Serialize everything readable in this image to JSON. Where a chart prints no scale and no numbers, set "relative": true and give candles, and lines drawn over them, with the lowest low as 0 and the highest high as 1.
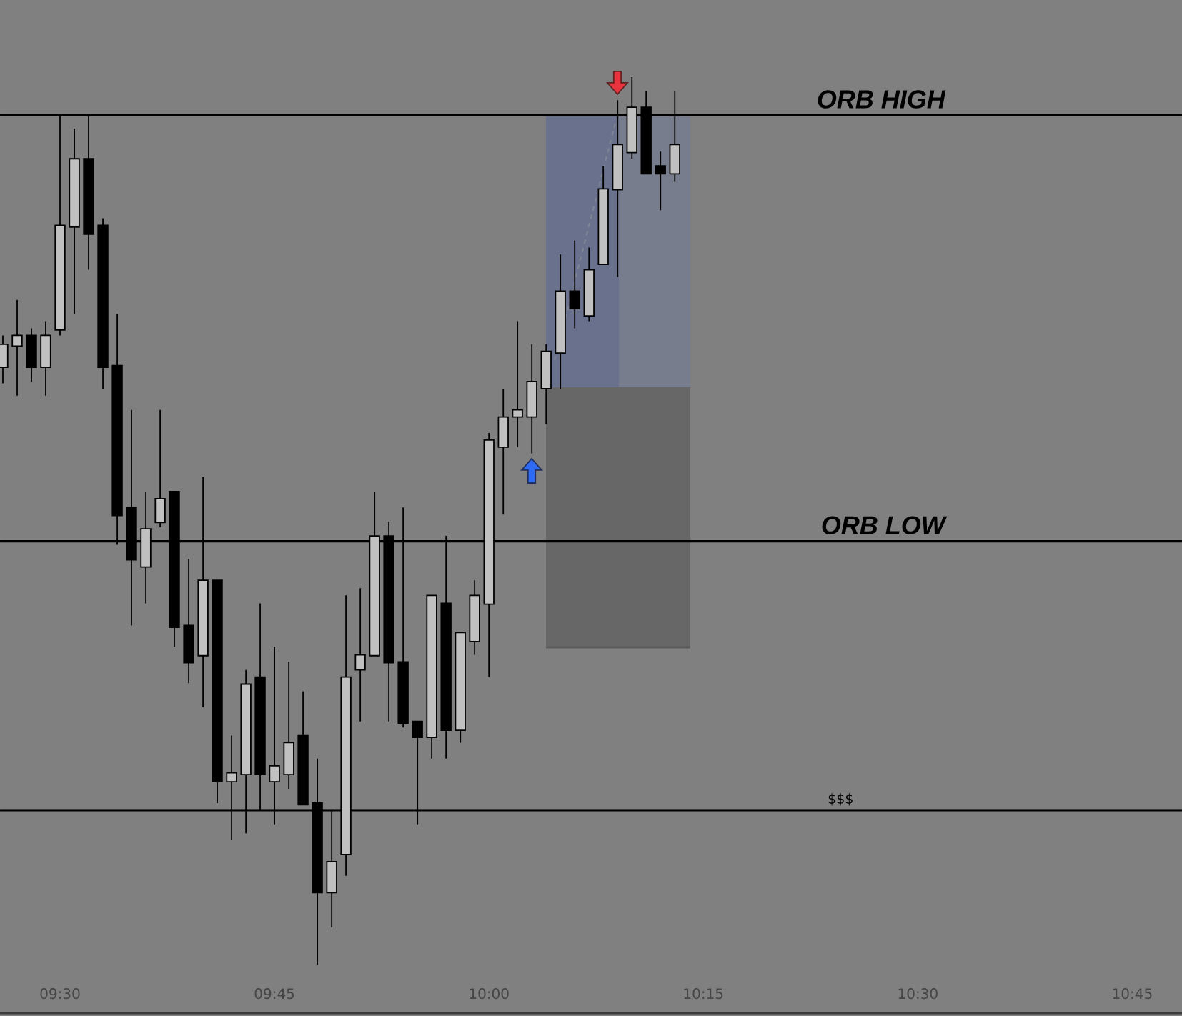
{
  "chart_data": {
    "type": "candlestick",
    "relative": true,
    "x": [
      9.4333,
      9.45,
      9.4667,
      9.4833,
      9.5,
      9.5167,
      9.5333,
      9.55,
      9.5667,
      9.5833,
      9.6,
      9.6167,
      9.6333,
      9.65,
      9.6667,
      9.6833,
      9.7,
      9.7167,
      9.7333,
      9.75,
      9.7667,
      9.7833,
      9.8,
      9.8167,
      9.8333,
      9.85,
      9.8667,
      9.8833,
      9.9,
      9.9167,
      9.9333,
      9.95,
      9.9667,
      9.9833,
      10,
      10.0167,
      10.0333,
      10.05,
      10.0667,
      10.0833,
      10.1,
      10.1167,
      10.1333,
      10.15,
      10.1667,
      10.1833,
      10.2,
      10.2167
    ],
    "ohlc": [
      [
        0.673,
        0.709,
        0.655,
        0.699
      ],
      [
        0.697,
        0.749,
        0.641,
        0.709
      ],
      [
        0.709,
        0.717,
        0.657,
        0.673
      ],
      [
        0.673,
        0.725,
        0.641,
        0.709
      ],
      [
        0.715,
        0.957,
        0.709,
        0.833
      ],
      [
        0.831,
        0.942,
        0.733,
        0.908
      ],
      [
        0.908,
        0.957,
        0.783,
        0.823
      ],
      [
        0.833,
        0.841,
        0.649,
        0.673
      ],
      [
        0.675,
        0.733,
        0.473,
        0.506
      ],
      [
        0.515,
        0.625,
        0.382,
        0.456
      ],
      [
        0.448,
        0.533,
        0.407,
        0.491
      ],
      [
        0.498,
        0.625,
        0.493,
        0.525
      ],
      [
        0.533,
        0.533,
        0.358,
        0.38
      ],
      [
        0.382,
        0.457,
        0.317,
        0.34
      ],
      [
        0.348,
        0.549,
        0.29,
        0.433
      ],
      [
        0.433,
        0.433,
        0.182,
        0.206
      ],
      [
        0.206,
        0.258,
        0.14,
        0.216
      ],
      [
        0.214,
        0.332,
        0.148,
        0.316
      ],
      [
        0.324,
        0.407,
        0.174,
        0.214
      ],
      [
        0.206,
        0.358,
        0.158,
        0.224
      ],
      [
        0.214,
        0.341,
        0.198,
        0.25
      ],
      [
        0.258,
        0.308,
        0.18,
        0.18
      ],
      [
        0.182,
        0.232,
        0,
        0.081
      ],
      [
        0.081,
        0.174,
        0.042,
        0.116
      ],
      [
        0.124,
        0.416,
        0.1,
        0.324
      ],
      [
        0.332,
        0.424,
        0.274,
        0.349
      ],
      [
        0.348,
        0.533,
        0.348,
        0.483
      ],
      [
        0.483,
        0.499,
        0.274,
        0.34
      ],
      [
        0.341,
        0.515,
        0.267,
        0.272
      ],
      [
        0.274,
        0.274,
        0.158,
        0.256
      ],
      [
        0.256,
        0.416,
        0.232,
        0.416
      ],
      [
        0.407,
        0.483,
        0.232,
        0.264
      ],
      [
        0.264,
        0.374,
        0.25,
        0.374
      ],
      [
        0.364,
        0.433,
        0.349,
        0.416
      ],
      [
        0.406,
        0.599,
        0.324,
        0.591
      ],
      [
        0.583,
        0.649,
        0.507,
        0.617
      ],
      [
        0.617,
        0.725,
        0.583,
        0.625
      ],
      [
        0.617,
        0.699,
        0.576,
        0.657
      ],
      [
        0.649,
        0.699,
        0.609,
        0.691
      ],
      [
        0.689,
        0.8,
        0.649,
        0.759
      ],
      [
        0.759,
        0.816,
        0.717,
        0.739
      ],
      [
        0.731,
        0.808,
        0.725,
        0.783
      ],
      [
        0.789,
        0.9,
        0.789,
        0.874
      ],
      [
        0.873,
        0.974,
        0.775,
        0.924
      ],
      [
        0.915,
        1,
        0.908,
        0.966
      ],
      [
        0.966,
        0.984,
        0.891,
        0.891
      ],
      [
        0.9,
        0.916,
        0.85,
        0.891
      ],
      [
        0.891,
        0.984,
        0.882,
        0.924
      ]
    ],
    "colors": [
      "#c0c0c0",
      "#c0c0c0",
      "#000000",
      "#c0c0c0",
      "#c0c0c0",
      "#c0c0c0",
      "#000000",
      "#000000",
      "#000000",
      "#000000",
      "#c0c0c0",
      "#c0c0c0",
      "#000000",
      "#000000",
      "#c0c0c0",
      "#000000",
      "#c0c0c0",
      "#c0c0c0",
      "#000000",
      "#c0c0c0",
      "#c0c0c0",
      "#000000",
      "#000000",
      "#c0c0c0",
      "#c0c0c0",
      "#c0c0c0",
      "#c0c0c0",
      "#000000",
      "#000000",
      "#000000",
      "#c0c0c0",
      "#000000",
      "#c0c0c0",
      "#c0c0c0",
      "#c0c0c0",
      "#c0c0c0",
      "#c0c0c0",
      "#c0c0c0",
      "#c0c0c0",
      "#c0c0c0",
      "#000000",
      "#c0c0c0",
      "#c0c0c0",
      "#c0c0c0",
      "#c0c0c0",
      "#000000",
      "#000000",
      "#c0c0c0"
    ],
    "xlim": [
      9.43,
      10.808
    ],
    "xticks": [
      {
        "value": 9.5,
        "label": "09:30"
      },
      {
        "value": 9.75,
        "label": "09:45"
      },
      {
        "value": 10,
        "label": "10:00"
      },
      {
        "value": 10.25,
        "label": "10:15"
      },
      {
        "value": 10.5,
        "label": "10:30"
      },
      {
        "value": 10.75,
        "label": "10:45"
      }
    ],
    "ref_lines": [
      {
        "axis": "y",
        "value": 0.957,
        "label": "ORB HIGH",
        "color": "#000000"
      },
      {
        "axis": "y",
        "value": 0.477,
        "label": "ORB LOW",
        "color": "#000000"
      },
      {
        "axis": "y",
        "value": 0.174,
        "color": "#000000"
      }
    ],
    "annotations": [
      {
        "text": "$$$",
        "x": 10.41,
        "y": 0.174
      }
    ]
  }
}
